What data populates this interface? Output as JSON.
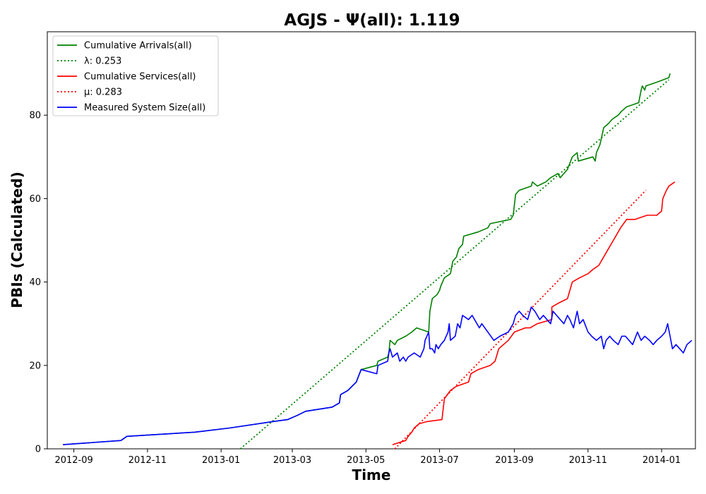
{
  "chart_data": {
    "type": "line",
    "title": "AGJS -  Ψ(all): 1.119",
    "xlabel": "Time",
    "ylabel": "PBIs (Calculated)",
    "x_is_date": true,
    "xlim": [
      "2012-08-10",
      "2014-01-29"
    ],
    "ylim": [
      0,
      100
    ],
    "xticks": [
      "2012-09",
      "2012-11",
      "2013-01",
      "2013-03",
      "2013-05",
      "2013-07",
      "2013-09",
      "2013-11",
      "2014-01"
    ],
    "yticks": [
      0,
      20,
      40,
      60,
      80
    ],
    "grid": false,
    "legend_position": "upper-left",
    "series": [
      {
        "name": "Cumulative Arrivals(all)",
        "color": "#008000",
        "style": "solid",
        "points": [
          [
            "2012-08-23",
            1
          ],
          [
            "2012-10-10",
            2
          ],
          [
            "2012-10-15",
            3
          ],
          [
            "2012-12-10",
            4
          ],
          [
            "2013-01-08",
            5
          ],
          [
            "2013-02-12",
            6.5
          ],
          [
            "2013-02-25",
            7
          ],
          [
            "2013-03-05",
            8
          ],
          [
            "2013-03-12",
            9
          ],
          [
            "2013-04-03",
            10
          ],
          [
            "2013-04-09",
            11
          ],
          [
            "2013-04-10",
            13
          ],
          [
            "2013-04-16",
            14
          ],
          [
            "2013-04-23",
            16
          ],
          [
            "2013-04-27",
            19
          ],
          [
            "2013-05-10",
            20
          ],
          [
            "2013-05-11",
            21
          ],
          [
            "2013-05-19",
            22
          ],
          [
            "2013-05-20",
            23
          ],
          [
            "2013-05-21",
            26
          ],
          [
            "2013-05-25",
            25
          ],
          [
            "2013-05-27",
            26
          ],
          [
            "2013-06-03",
            27
          ],
          [
            "2013-06-08",
            28
          ],
          [
            "2013-06-12",
            29
          ],
          [
            "2013-06-22",
            28
          ],
          [
            "2013-06-23",
            33
          ],
          [
            "2013-06-25",
            36
          ],
          [
            "2013-06-29",
            37
          ],
          [
            "2013-07-01",
            38
          ],
          [
            "2013-07-02",
            39
          ],
          [
            "2013-07-05",
            41
          ],
          [
            "2013-07-10",
            42
          ],
          [
            "2013-07-12",
            45
          ],
          [
            "2013-07-15",
            46
          ],
          [
            "2013-07-17",
            48
          ],
          [
            "2013-07-20",
            49
          ],
          [
            "2013-07-21",
            51
          ],
          [
            "2013-08-02",
            52
          ],
          [
            "2013-08-10",
            53
          ],
          [
            "2013-08-12",
            54
          ],
          [
            "2013-08-29",
            55
          ],
          [
            "2013-08-31",
            56
          ],
          [
            "2013-09-02",
            61
          ],
          [
            "2013-09-05",
            62
          ],
          [
            "2013-09-15",
            63
          ],
          [
            "2013-09-16",
            64
          ],
          [
            "2013-09-20",
            63
          ],
          [
            "2013-09-27",
            64
          ],
          [
            "2013-10-01",
            65
          ],
          [
            "2013-10-07",
            66
          ],
          [
            "2013-10-09",
            65
          ],
          [
            "2013-10-15",
            67
          ],
          [
            "2013-10-19",
            70
          ],
          [
            "2013-10-23",
            71
          ],
          [
            "2013-10-24",
            69
          ],
          [
            "2013-11-05",
            70
          ],
          [
            "2013-11-07",
            69
          ],
          [
            "2013-11-08",
            71
          ],
          [
            "2013-11-11",
            73
          ],
          [
            "2013-11-14",
            77
          ],
          [
            "2013-11-18",
            78
          ],
          [
            "2013-11-21",
            79
          ],
          [
            "2013-11-26",
            80
          ],
          [
            "2013-11-29",
            81
          ],
          [
            "2013-12-03",
            82
          ],
          [
            "2013-12-13",
            83
          ],
          [
            "2013-12-15",
            86
          ],
          [
            "2013-12-16",
            87
          ],
          [
            "2013-12-18",
            86
          ],
          [
            "2013-12-19",
            87
          ],
          [
            "2013-12-29",
            88
          ],
          [
            "2014-01-07",
            89
          ],
          [
            "2014-01-08",
            90
          ]
        ]
      },
      {
        "name": "λ: 0.253",
        "color": "#008000",
        "style": "dotted",
        "points": [
          [
            "2013-01-17",
            0
          ],
          [
            "2014-01-07",
            88.5
          ]
        ]
      },
      {
        "name": "Cumulative Services(all)",
        "color": "#ff0000",
        "style": "solid",
        "points": [
          [
            "2013-05-23",
            1
          ],
          [
            "2013-06-03",
            2
          ],
          [
            "2013-06-05",
            3
          ],
          [
            "2013-06-08",
            4
          ],
          [
            "2013-06-10",
            5
          ],
          [
            "2013-06-14",
            6
          ],
          [
            "2013-06-20",
            6.5
          ],
          [
            "2013-07-03",
            7
          ],
          [
            "2013-07-05",
            12
          ],
          [
            "2013-07-10",
            14
          ],
          [
            "2013-07-15",
            15
          ],
          [
            "2013-07-25",
            16
          ],
          [
            "2013-07-27",
            18
          ],
          [
            "2013-08-02",
            19
          ],
          [
            "2013-08-12",
            20
          ],
          [
            "2013-08-16",
            21
          ],
          [
            "2013-08-19",
            24
          ],
          [
            "2013-08-27",
            26
          ],
          [
            "2013-09-01",
            28
          ],
          [
            "2013-09-10",
            29
          ],
          [
            "2013-09-14",
            29
          ],
          [
            "2013-09-20",
            30
          ],
          [
            "2013-10-02",
            31
          ],
          [
            "2013-10-02",
            34
          ],
          [
            "2013-10-08",
            35
          ],
          [
            "2013-10-15",
            36
          ],
          [
            "2013-10-19",
            40
          ],
          [
            "2013-10-25",
            41
          ],
          [
            "2013-11-01",
            42
          ],
          [
            "2013-11-05",
            43
          ],
          [
            "2013-11-10",
            44
          ],
          [
            "2013-11-16",
            47
          ],
          [
            "2013-11-22",
            50
          ],
          [
            "2013-11-28",
            53
          ],
          [
            "2013-12-03",
            55
          ],
          [
            "2013-12-10",
            55
          ],
          [
            "2013-12-20",
            56
          ],
          [
            "2013-12-28",
            56
          ],
          [
            "2014-01-01",
            57
          ],
          [
            "2014-01-02",
            60
          ],
          [
            "2014-01-05",
            62
          ],
          [
            "2014-01-07",
            63
          ],
          [
            "2014-01-12",
            64
          ]
        ]
      },
      {
        "name": "μ: 0.283",
        "color": "#ff0000",
        "style": "dotted",
        "points": [
          [
            "2013-05-25",
            0
          ],
          [
            "2013-12-19",
            62
          ]
        ]
      },
      {
        "name": "Measured System Size(all)",
        "color": "#0000ff",
        "style": "solid",
        "points": [
          [
            "2012-08-23",
            1
          ],
          [
            "2012-10-10",
            2
          ],
          [
            "2012-10-15",
            3
          ],
          [
            "2012-12-10",
            4
          ],
          [
            "2013-01-08",
            5
          ],
          [
            "2013-02-12",
            6.5
          ],
          [
            "2013-02-25",
            7
          ],
          [
            "2013-03-05",
            8
          ],
          [
            "2013-03-12",
            9
          ],
          [
            "2013-04-03",
            10
          ],
          [
            "2013-04-09",
            11
          ],
          [
            "2013-04-10",
            13
          ],
          [
            "2013-04-16",
            14
          ],
          [
            "2013-04-23",
            16
          ],
          [
            "2013-04-27",
            19
          ],
          [
            "2013-05-10",
            18
          ],
          [
            "2013-05-11",
            20
          ],
          [
            "2013-05-19",
            21
          ],
          [
            "2013-05-20",
            23
          ],
          [
            "2013-05-21",
            24
          ],
          [
            "2013-05-23",
            22
          ],
          [
            "2013-05-27",
            23
          ],
          [
            "2013-05-29",
            21
          ],
          [
            "2013-06-01",
            22
          ],
          [
            "2013-06-03",
            21
          ],
          [
            "2013-06-05",
            22
          ],
          [
            "2013-06-10",
            23
          ],
          [
            "2013-06-15",
            22
          ],
          [
            "2013-06-18",
            24
          ],
          [
            "2013-06-19",
            26
          ],
          [
            "2013-06-22",
            28
          ],
          [
            "2013-06-23",
            24
          ],
          [
            "2013-06-25",
            24
          ],
          [
            "2013-06-27",
            23
          ],
          [
            "2013-06-28",
            25
          ],
          [
            "2013-06-30",
            24
          ],
          [
            "2013-07-02",
            25
          ],
          [
            "2013-07-05",
            26
          ],
          [
            "2013-07-08",
            28
          ],
          [
            "2013-07-09",
            30
          ],
          [
            "2013-07-10",
            26
          ],
          [
            "2013-07-14",
            27
          ],
          [
            "2013-07-16",
            30
          ],
          [
            "2013-07-18",
            29
          ],
          [
            "2013-07-20",
            32
          ],
          [
            "2013-07-25",
            31
          ],
          [
            "2013-07-28",
            32
          ],
          [
            "2013-08-01",
            30
          ],
          [
            "2013-08-03",
            29
          ],
          [
            "2013-08-05",
            30
          ],
          [
            "2013-08-10",
            28
          ],
          [
            "2013-08-15",
            26
          ],
          [
            "2013-08-20",
            27
          ],
          [
            "2013-08-27",
            28
          ],
          [
            "2013-08-29",
            29
          ],
          [
            "2013-08-31",
            30
          ],
          [
            "2013-09-02",
            32
          ],
          [
            "2013-09-05",
            33
          ],
          [
            "2013-09-08",
            32
          ],
          [
            "2013-09-12",
            31
          ],
          [
            "2013-09-15",
            34
          ],
          [
            "2013-09-18",
            33
          ],
          [
            "2013-09-22",
            31
          ],
          [
            "2013-09-25",
            32
          ],
          [
            "2013-09-28",
            31
          ],
          [
            "2013-10-01",
            30
          ],
          [
            "2013-10-03",
            33
          ],
          [
            "2013-10-06",
            32
          ],
          [
            "2013-10-09",
            31
          ],
          [
            "2013-10-12",
            30
          ],
          [
            "2013-10-15",
            32
          ],
          [
            "2013-10-17",
            31
          ],
          [
            "2013-10-20",
            29
          ],
          [
            "2013-10-23",
            33
          ],
          [
            "2013-10-25",
            30
          ],
          [
            "2013-10-28",
            31
          ],
          [
            "2013-11-01",
            28
          ],
          [
            "2013-11-04",
            27
          ],
          [
            "2013-11-08",
            26
          ],
          [
            "2013-11-12",
            27
          ],
          [
            "2013-11-14",
            24
          ],
          [
            "2013-11-16",
            26
          ],
          [
            "2013-11-19",
            27
          ],
          [
            "2013-11-22",
            26
          ],
          [
            "2013-11-26",
            25
          ],
          [
            "2013-11-29",
            27
          ],
          [
            "2013-12-02",
            27
          ],
          [
            "2013-12-05",
            26
          ],
          [
            "2013-12-08",
            25
          ],
          [
            "2013-12-12",
            28
          ],
          [
            "2013-12-15",
            26
          ],
          [
            "2013-12-18",
            27
          ],
          [
            "2013-12-22",
            26
          ],
          [
            "2013-12-25",
            25
          ],
          [
            "2013-12-28",
            26
          ],
          [
            "2014-01-01",
            27
          ],
          [
            "2014-01-04",
            28
          ],
          [
            "2014-01-06",
            30
          ],
          [
            "2014-01-08",
            27
          ],
          [
            "2014-01-10",
            24
          ],
          [
            "2014-01-13",
            25
          ],
          [
            "2014-01-16",
            24
          ],
          [
            "2014-01-19",
            23
          ],
          [
            "2014-01-22",
            25
          ],
          [
            "2014-01-26",
            26
          ]
        ]
      }
    ]
  }
}
